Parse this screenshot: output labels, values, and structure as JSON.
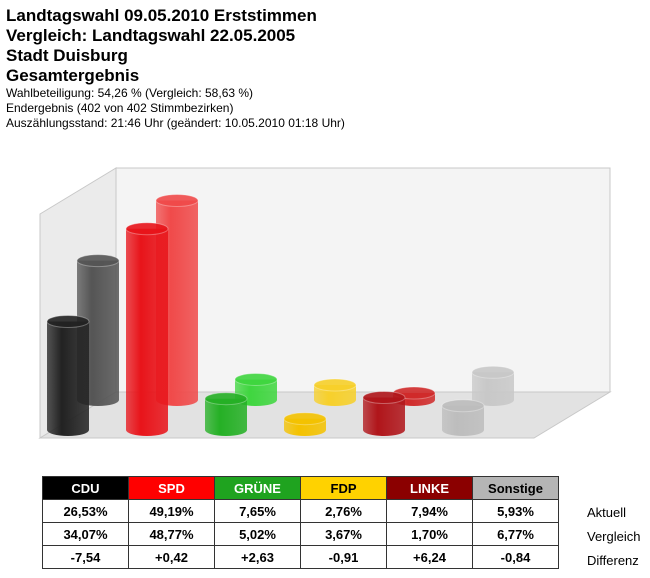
{
  "header": {
    "titles": [
      "Landtagswahl 09.05.2010 Erststimmen",
      "Vergleich: Landtagswahl 22.05.2005",
      "Stadt Duisburg",
      "Gesamtergebnis"
    ],
    "info": [
      "Wahlbeteiligung: 54,26 % (Vergleich: 58,63 %)",
      "Endergebnis (402 von 402 Stimmbezirken)",
      "Auszählungsstand: 21:46 Uhr (geändert: 10.05.2010 01:18 Uhr)"
    ]
  },
  "chart_data": {
    "type": "bar",
    "style": "3d-cylinder",
    "categories": [
      "CDU",
      "SPD",
      "GRÜNE",
      "FDP",
      "LINKE",
      "Sonstige"
    ],
    "series": [
      {
        "values": [
          26.53,
          49.19,
          7.65,
          2.76,
          7.94,
          5.93
        ]
      },
      {
        "values": [
          34.07,
          48.77,
          5.02,
          3.67,
          1.7,
          6.77
        ]
      }
    ],
    "differences": [
      "-7,54",
      "+0,42",
      "+2,63",
      "-0,91",
      "+6,24",
      "-0,84"
    ],
    "colors": {
      "CDU": {
        "front": "#222222",
        "back": "#555555",
        "header": "#000000",
        "text": "#ffffff"
      },
      "SPD": {
        "front": "#e8141a",
        "back": "#f04a4a",
        "header": "#ff0000",
        "text": "#ffffff"
      },
      "GRÜNE": {
        "front": "#25b025",
        "back": "#3fd63f",
        "header": "#1fa31f",
        "text": "#ffffff"
      },
      "FDP": {
        "front": "#f4c200",
        "back": "#f7d02a",
        "header": "#ffd200",
        "text": "#000000"
      },
      "LINKE": {
        "front": "#b0151a",
        "back": "#d02a2a",
        "header": "#8b0000",
        "text": "#ffffff"
      },
      "Sonstige": {
        "front": "#bdbdbd",
        "back": "#c8c8c8",
        "header": "#b5b5b5",
        "text": "#000000"
      }
    },
    "grid": false,
    "legend": "none"
  },
  "table": {
    "headers": [
      "CDU",
      "SPD",
      "GRÜNE",
      "FDP",
      "LINKE",
      "Sonstige"
    ],
    "current": [
      "26,53%",
      "49,19%",
      "7,65%",
      "2,76%",
      "7,94%",
      "5,93%"
    ],
    "compare": [
      "34,07%",
      "48,77%",
      "5,02%",
      "3,67%",
      "1,70%",
      "6,77%"
    ],
    "diff": [
      "-7,54",
      "+0,42",
      "+2,63",
      "-0,91",
      "+6,24",
      "-0,84"
    ],
    "row_labels": {
      "current": "Aktuell",
      "compare": "Vergleich",
      "diff": "Differenz"
    }
  }
}
